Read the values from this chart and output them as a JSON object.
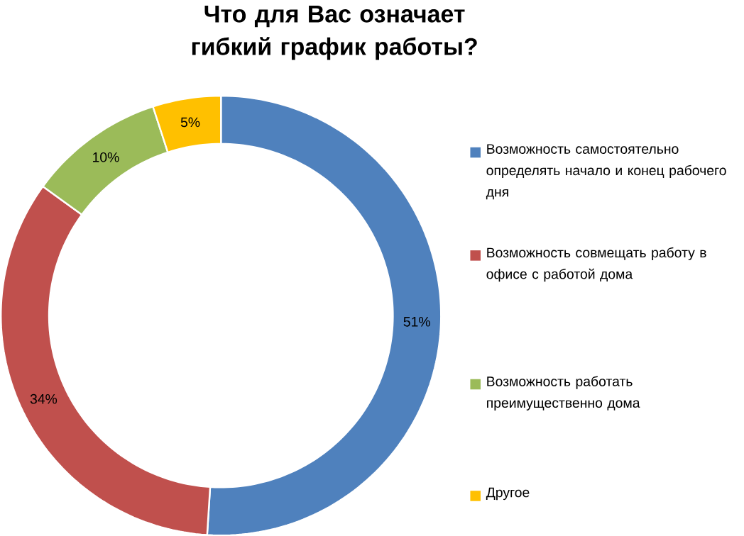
{
  "chart_data": {
    "type": "donut",
    "title": "Что для Вас означает гибкий график работы?",
    "categories": [
      "Возможность самостоятельно определять начало и конец рабочего дня",
      "Возможность совмещать работу в офисе с работой дома",
      "Возможность работать преимущественно дома",
      "Другое"
    ],
    "values": [
      51,
      34,
      10,
      5
    ],
    "colors": [
      "#4f81bd",
      "#c0504d",
      "#9bbb59",
      "#ffc000"
    ],
    "value_labels": [
      "51%",
      "34%",
      "10%",
      "5%"
    ],
    "legend": "right"
  }
}
